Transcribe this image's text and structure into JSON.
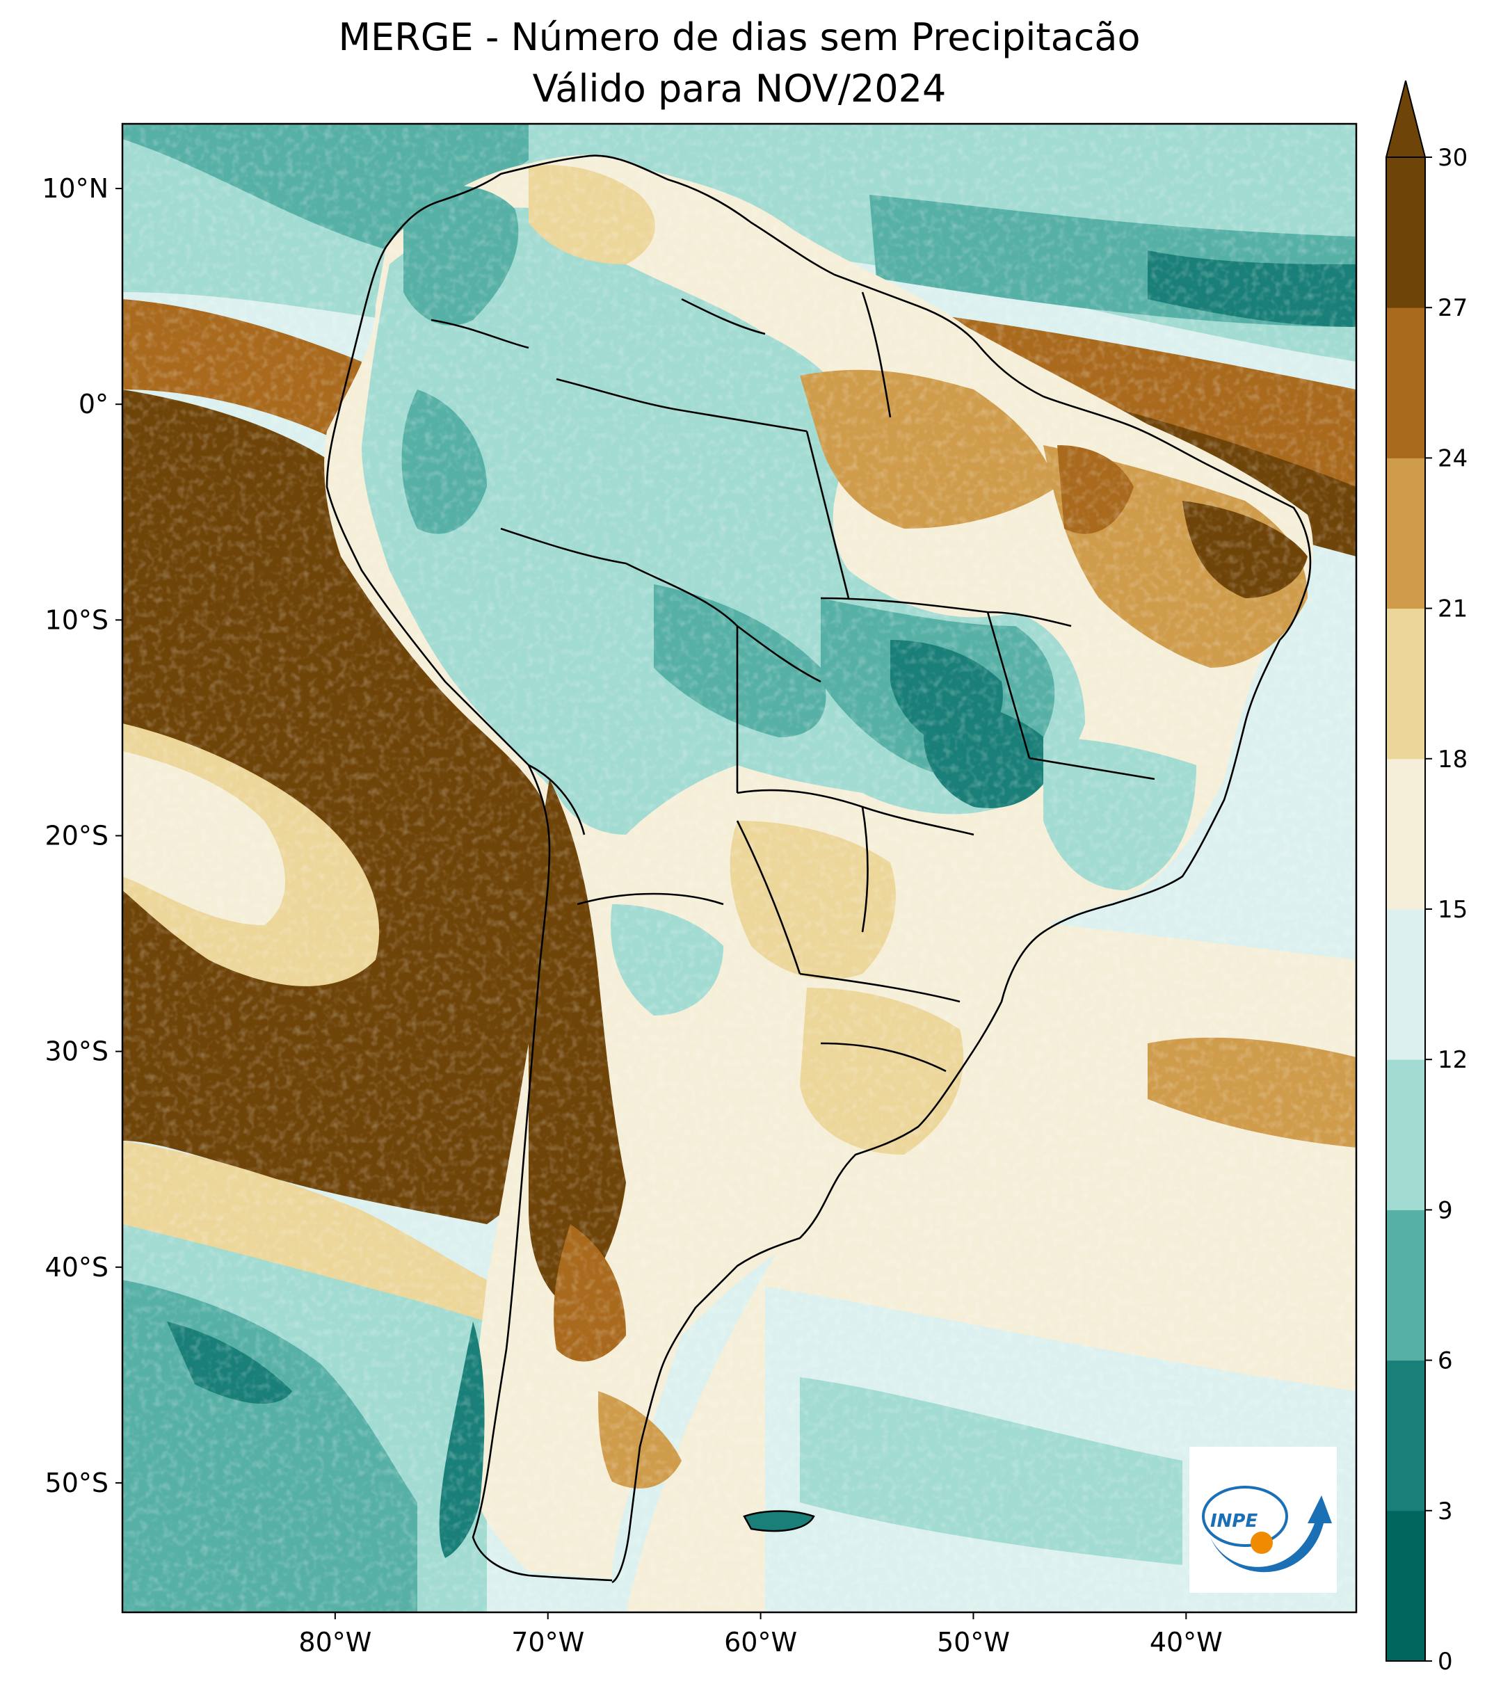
{
  "title": {
    "line1": "MERGE - Número de dias sem Precipitacão",
    "line2": "Válido para NOV/2024"
  },
  "map": {
    "lon_range": [
      -90,
      -32
    ],
    "lat_range": [
      -56,
      13
    ],
    "lat_ticks": [
      {
        "value": 10,
        "label": "10°N"
      },
      {
        "value": 0,
        "label": "0°"
      },
      {
        "value": -10,
        "label": "10°S"
      },
      {
        "value": -20,
        "label": "20°S"
      },
      {
        "value": -30,
        "label": "30°S"
      },
      {
        "value": -40,
        "label": "40°S"
      },
      {
        "value": -50,
        "label": "50°S"
      }
    ],
    "lon_ticks": [
      {
        "value": -80,
        "label": "80°W"
      },
      {
        "value": -70,
        "label": "70°W"
      },
      {
        "value": -60,
        "label": "60°W"
      },
      {
        "value": -50,
        "label": "50°W"
      },
      {
        "value": -40,
        "label": "40°W"
      }
    ]
  },
  "colorbar": {
    "levels": [
      0,
      3,
      6,
      9,
      12,
      15,
      18,
      21,
      24,
      27,
      30
    ],
    "labels": [
      "0",
      "3",
      "6",
      "9",
      "12",
      "15",
      "18",
      "21",
      "24",
      "27",
      "30"
    ],
    "colors": [
      "#01665e",
      "#1a7f78",
      "#57b0a6",
      "#a2dbd2",
      "#dcf1ef",
      "#f5efd9",
      "#ecd69a",
      "#cf9c4b",
      "#a96a1e",
      "#6f4409"
    ],
    "extend": "max"
  },
  "logo": {
    "text": "INPE"
  }
}
